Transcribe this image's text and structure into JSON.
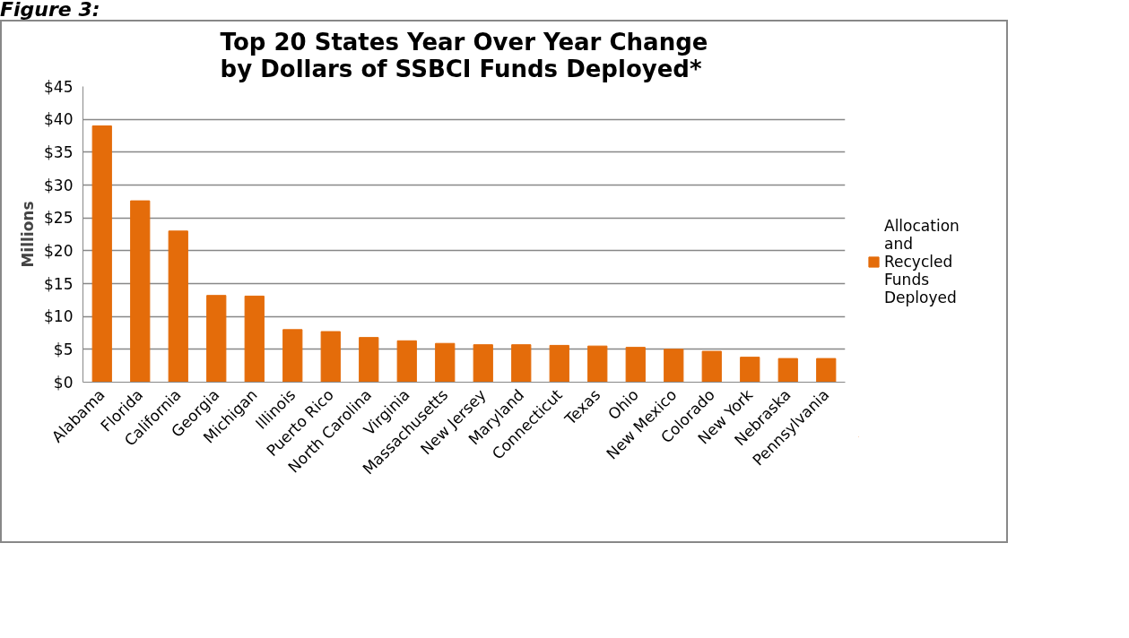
{
  "chart_data": {
    "type": "bar",
    "title": "Top 20 States Year Over Year Change\nby Dollars of SSBCI Funds Deployed*",
    "ylabel": "Millions",
    "annotations": [
      "Figure 3:"
    ],
    "categories": [
      "Alabama",
      "Florida",
      "California",
      "Georgia",
      "Michigan",
      "Illinois",
      "Puerto Rico",
      "North Carolina",
      "Virginia",
      "Massachusetts",
      "New Jersey",
      "Maryland",
      "Connecticut",
      "Texas",
      "Ohio",
      "New Mexico",
      "Colorado",
      "New York",
      "Nebraska",
      "Pennsylvania"
    ],
    "series": [
      {
        "name": "Allocation and Recycled Funds Deployed",
        "color": "#e46c0a",
        "values": [
          39.0,
          27.6,
          23.0,
          13.2,
          13.1,
          8.0,
          7.7,
          6.8,
          6.3,
          5.9,
          5.7,
          5.7,
          5.6,
          5.5,
          5.3,
          5.0,
          4.7,
          3.8,
          3.6,
          3.6
        ]
      }
    ],
    "ylim": [
      0,
      45
    ],
    "yticks": [
      {
        "value": 0,
        "label": "$0"
      },
      {
        "value": 5,
        "label": "$5"
      },
      {
        "value": 10,
        "label": "$10"
      },
      {
        "value": 15,
        "label": "$15"
      },
      {
        "value": 20,
        "label": "$20"
      },
      {
        "value": 25,
        "label": "$25"
      },
      {
        "value": 30,
        "label": "$30"
      },
      {
        "value": 35,
        "label": "$35"
      },
      {
        "value": 40,
        "label": "$40"
      },
      {
        "value": 45,
        "label": "$45"
      }
    ],
    "grid": "y",
    "legend": "right"
  }
}
